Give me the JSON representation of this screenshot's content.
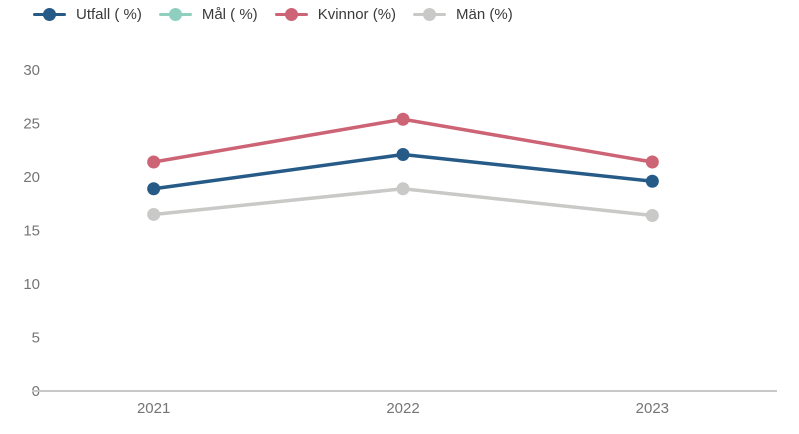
{
  "chart_data": {
    "type": "line",
    "title": "",
    "xlabel": "",
    "ylabel": "",
    "categories": [
      "2021",
      "2022",
      "2023"
    ],
    "series": [
      {
        "name": "Utfall ( %)",
        "color": "#275b87",
        "values": [
          18.9,
          22.1,
          19.6
        ]
      },
      {
        "name": "Mål ( %)",
        "color": "#8fcfc0",
        "values": [
          null,
          null,
          null
        ]
      },
      {
        "name": "Kvinnor (%)",
        "color": "#cd6476",
        "values": [
          21.4,
          25.4,
          21.4
        ]
      },
      {
        "name": "Män (%)",
        "color": "#c9c9c7",
        "values": [
          16.5,
          18.9,
          16.4
        ]
      }
    ],
    "ylim": [
      0,
      30
    ],
    "yticks": [
      0,
      5,
      10,
      15,
      20,
      25,
      30
    ],
    "grid": false,
    "legend_position": "top-left",
    "axis_line_color": "#c8c8c8",
    "axis_label_color": "#757575"
  }
}
